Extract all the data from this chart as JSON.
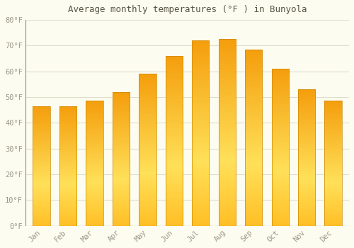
{
  "title": "Average monthly temperatures (°F ) in Bunyola",
  "months": [
    "Jan",
    "Feb",
    "Mar",
    "Apr",
    "May",
    "Jun",
    "Jul",
    "Aug",
    "Sep",
    "Oct",
    "Nov",
    "Dec"
  ],
  "values": [
    46.5,
    46.5,
    48.5,
    52.0,
    59.0,
    66.0,
    72.0,
    72.5,
    68.5,
    61.0,
    53.0,
    48.5
  ],
  "bar_color_dark": "#F5A800",
  "bar_color_mid": "#FFD040",
  "bar_color_light": "#FFE080",
  "bar_edge_color": "#CC8800",
  "background_color": "#FDFCF0",
  "grid_color": "#DDDDCC",
  "tick_label_color": "#999988",
  "title_color": "#555544",
  "ylim": [
    0,
    80
  ],
  "yticks": [
    0,
    10,
    20,
    30,
    40,
    50,
    60,
    70,
    80
  ],
  "bar_width": 0.65
}
